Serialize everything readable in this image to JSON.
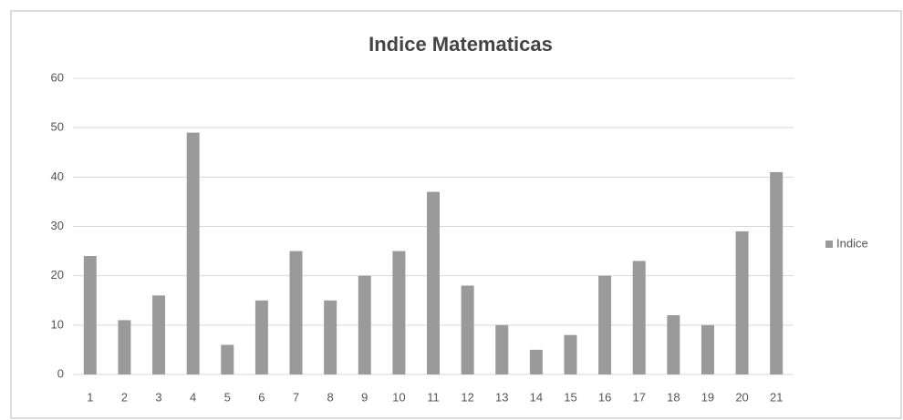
{
  "chart_data": {
    "type": "bar",
    "title": "Indice Matematicas",
    "categories": [
      "1",
      "2",
      "3",
      "4",
      "5",
      "6",
      "7",
      "8",
      "9",
      "10",
      "11",
      "12",
      "13",
      "14",
      "15",
      "16",
      "17",
      "18",
      "19",
      "20",
      "21"
    ],
    "series": [
      {
        "name": "Indice",
        "color": "#9a9a9a",
        "values": [
          24,
          11,
          16,
          49,
          6,
          15,
          25,
          15,
          20,
          25,
          37,
          18,
          10,
          5,
          8,
          20,
          23,
          12,
          10,
          29,
          41
        ]
      }
    ],
    "ylim": [
      0,
      60
    ],
    "yticks": [
      0,
      10,
      20,
      30,
      40,
      50,
      60
    ],
    "grid": true,
    "legend": "right"
  }
}
